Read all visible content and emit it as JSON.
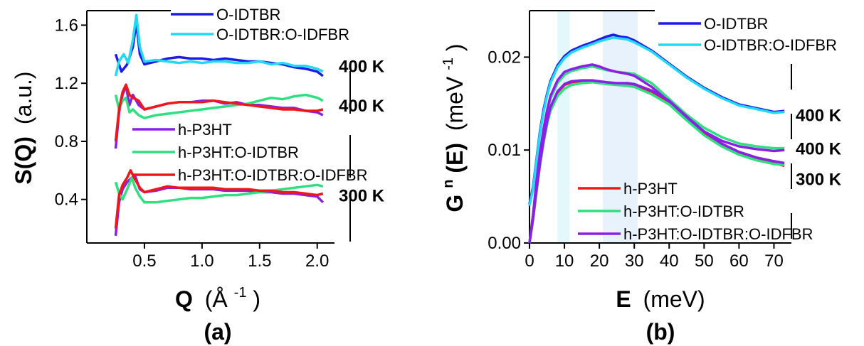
{
  "chart_data": [
    {
      "type": "line",
      "panel_label": "(a)",
      "xlabel": {
        "main": "Q",
        "unit_open": "(Å",
        "unit_sup": "-1",
        "unit_close": ")"
      },
      "ylabel": {
        "main": "S(Q)",
        "unit": "(a.u.)"
      },
      "xlim": [
        0,
        2.15
      ],
      "ylim": [
        0.1,
        1.7
      ],
      "xticks": [
        0.5,
        1.0,
        1.5,
        2.0
      ],
      "xtick_labels": [
        "0.5",
        "1.0",
        "1.5",
        "2.0"
      ],
      "yticks": [
        0.4,
        0.8,
        1.2,
        1.6
      ],
      "ytick_labels": [
        "0.4",
        "0.8",
        "1.2",
        "1.6"
      ],
      "temperature_labels": [
        {
          "text": "400 K",
          "y": 1.32
        },
        {
          "text": "400 K",
          "y": 1.05
        },
        {
          "text": "300 K",
          "y": 0.43
        }
      ],
      "legend_groups": [
        {
          "placement": "top",
          "entries": [
            0,
            1
          ]
        },
        {
          "placement": "middle-left",
          "entries": [
            2,
            3,
            4
          ]
        }
      ],
      "series": [
        {
          "name": "O-IDTBR",
          "color": "#1c1ce6",
          "x": [
            0.25,
            0.3,
            0.35,
            0.4,
            0.43,
            0.46,
            0.5,
            0.6,
            0.7,
            0.8,
            0.9,
            1.0,
            1.1,
            1.2,
            1.3,
            1.4,
            1.5,
            1.6,
            1.7,
            1.8,
            1.9,
            2.0,
            2.05
          ],
          "y": [
            1.4,
            1.28,
            1.33,
            1.45,
            1.62,
            1.4,
            1.33,
            1.35,
            1.37,
            1.38,
            1.37,
            1.37,
            1.36,
            1.37,
            1.36,
            1.35,
            1.35,
            1.34,
            1.33,
            1.31,
            1.3,
            1.28,
            1.25
          ]
        },
        {
          "name": "O-IDTBR:O-IDFBR",
          "color": "#22d9f5",
          "x": [
            0.25,
            0.28,
            0.32,
            0.36,
            0.4,
            0.43,
            0.46,
            0.5,
            0.6,
            0.7,
            0.8,
            0.9,
            1.0,
            1.1,
            1.2,
            1.3,
            1.4,
            1.5,
            1.6,
            1.7,
            1.8,
            1.9,
            2.0,
            2.05
          ],
          "y": [
            1.25,
            1.35,
            1.4,
            1.34,
            1.5,
            1.67,
            1.45,
            1.35,
            1.36,
            1.35,
            1.34,
            1.35,
            1.34,
            1.35,
            1.35,
            1.34,
            1.34,
            1.35,
            1.33,
            1.34,
            1.32,
            1.32,
            1.3,
            1.28
          ]
        },
        {
          "name": "h-P3HT",
          "color": "#8b1fe8",
          "x": [
            0.25,
            0.28,
            0.31,
            0.34,
            0.37,
            0.4,
            0.45,
            0.5,
            0.6,
            0.7,
            0.8,
            0.9,
            1.0,
            1.1,
            1.2,
            1.3,
            1.4,
            1.5,
            1.6,
            1.7,
            1.8,
            1.9,
            2.0,
            2.05
          ],
          "y": [
            0.75,
            1.0,
            1.12,
            1.18,
            1.05,
            1.12,
            1.05,
            1.02,
            1.04,
            1.06,
            1.07,
            1.07,
            1.08,
            1.08,
            1.06,
            1.07,
            1.05,
            1.05,
            1.04,
            1.03,
            1.03,
            1.01,
            1.0,
            0.98
          ]
        },
        {
          "name": "h-P3HT:O-IDTBR",
          "color": "#2ee07f",
          "x": [
            0.25,
            0.28,
            0.31,
            0.34,
            0.37,
            0.4,
            0.45,
            0.5,
            0.6,
            0.7,
            0.8,
            0.9,
            1.0,
            1.1,
            1.2,
            1.3,
            1.4,
            1.5,
            1.6,
            1.7,
            1.8,
            1.9,
            2.0,
            2.05
          ],
          "y": [
            1.12,
            1.02,
            1.08,
            1.1,
            1.0,
            1.02,
            0.98,
            0.96,
            0.98,
            0.99,
            1.0,
            1.01,
            1.02,
            1.03,
            1.04,
            1.05,
            1.06,
            1.08,
            1.1,
            1.09,
            1.11,
            1.12,
            1.1,
            1.08
          ]
        },
        {
          "name": "h-P3HT:O-IDTBR:O-IDFBR",
          "color": "#f01717",
          "x": [
            0.25,
            0.28,
            0.31,
            0.34,
            0.37,
            0.4,
            0.45,
            0.5,
            0.6,
            0.7,
            0.8,
            0.9,
            1.0,
            1.1,
            1.2,
            1.3,
            1.4,
            1.5,
            1.6,
            1.7,
            1.8,
            1.9,
            2.0,
            2.05
          ],
          "y": [
            0.8,
            1.02,
            1.14,
            1.19,
            1.12,
            1.1,
            1.08,
            1.02,
            1.04,
            1.06,
            1.07,
            1.07,
            1.07,
            1.08,
            1.07,
            1.06,
            1.05,
            1.04,
            1.03,
            1.02,
            1.02,
            1.01,
            1.01,
            1.02
          ]
        },
        {
          "name": "",
          "color": "#8b1fe8",
          "x": [
            0.25,
            0.28,
            0.31,
            0.35,
            0.39,
            0.42,
            0.46,
            0.5,
            0.6,
            0.7,
            0.8,
            0.9,
            1.0,
            1.1,
            1.2,
            1.3,
            1.4,
            1.5,
            1.6,
            1.7,
            1.8,
            1.9,
            2.0,
            2.05
          ],
          "y": [
            0.15,
            0.38,
            0.47,
            0.52,
            0.55,
            0.56,
            0.47,
            0.45,
            0.46,
            0.48,
            0.48,
            0.47,
            0.47,
            0.47,
            0.46,
            0.46,
            0.46,
            0.45,
            0.45,
            0.44,
            0.44,
            0.43,
            0.42,
            0.38
          ]
        },
        {
          "name": "",
          "color": "#2ee07f",
          "x": [
            0.25,
            0.28,
            0.31,
            0.35,
            0.39,
            0.42,
            0.46,
            0.5,
            0.6,
            0.7,
            0.8,
            0.9,
            1.0,
            1.1,
            1.2,
            1.3,
            1.4,
            1.5,
            1.6,
            1.7,
            1.8,
            1.9,
            2.0,
            2.05
          ],
          "y": [
            0.52,
            0.44,
            0.4,
            0.47,
            0.55,
            0.48,
            0.42,
            0.38,
            0.38,
            0.39,
            0.4,
            0.41,
            0.41,
            0.42,
            0.43,
            0.43,
            0.44,
            0.45,
            0.46,
            0.47,
            0.48,
            0.49,
            0.5,
            0.49
          ]
        },
        {
          "name": "",
          "color": "#f01717",
          "x": [
            0.25,
            0.28,
            0.31,
            0.35,
            0.38,
            0.41,
            0.46,
            0.5,
            0.6,
            0.7,
            0.8,
            0.9,
            1.0,
            1.1,
            1.2,
            1.3,
            1.4,
            1.5,
            1.6,
            1.7,
            1.8,
            1.9,
            2.0,
            2.05
          ],
          "y": [
            0.2,
            0.43,
            0.5,
            0.55,
            0.6,
            0.55,
            0.48,
            0.45,
            0.47,
            0.49,
            0.48,
            0.48,
            0.48,
            0.48,
            0.47,
            0.47,
            0.47,
            0.46,
            0.46,
            0.45,
            0.45,
            0.44,
            0.43,
            0.44
          ]
        }
      ]
    },
    {
      "type": "line",
      "panel_label": "(b)",
      "xlabel": {
        "main": "E",
        "unit": "(meV)"
      },
      "ylabel": {
        "main": "G",
        "main_sup": "n",
        "main_rest": "(E)",
        "unit_open": "(meV",
        "unit_sup": "-1",
        "unit_close": ")"
      },
      "xlim": [
        0,
        75
      ],
      "ylim": [
        0,
        0.025
      ],
      "xticks": [
        0,
        10,
        20,
        30,
        40,
        50,
        60,
        70
      ],
      "xtick_labels": [
        "0",
        "10",
        "20",
        "30",
        "40",
        "50",
        "60",
        "70"
      ],
      "yticks": [
        0.0,
        0.01,
        0.02
      ],
      "ytick_labels": [
        "0.00",
        "0.01",
        "0.02"
      ],
      "shaded_bands": [
        {
          "x": [
            8,
            11.5
          ],
          "color": "#e3f8fb"
        },
        {
          "x": [
            21,
            31
          ],
          "color": "#e8f2fc"
        }
      ],
      "temperature_labels": [
        {
          "text": "400 K",
          "y": 0.0138
        },
        {
          "text": "400 K",
          "y": 0.0102
        },
        {
          "text": "300 K",
          "y": 0.0069
        }
      ],
      "legend_groups": [
        {
          "placement": "top-right",
          "entries": [
            0,
            1
          ]
        },
        {
          "placement": "bottom-right",
          "entries": [
            2,
            3,
            4
          ]
        }
      ],
      "series": [
        {
          "name": "O-IDTBR",
          "color": "#1c1ce6",
          "x": [
            0,
            1,
            2,
            3,
            4,
            5,
            6,
            8,
            10,
            12,
            15,
            18,
            20,
            22,
            24,
            26,
            28,
            30,
            35,
            40,
            45,
            50,
            55,
            60,
            65,
            70,
            73
          ],
          "y": [
            0.0042,
            0.006,
            0.009,
            0.012,
            0.0143,
            0.016,
            0.0174,
            0.0191,
            0.0201,
            0.0207,
            0.0212,
            0.0216,
            0.0219,
            0.0222,
            0.0224,
            0.0222,
            0.0221,
            0.0218,
            0.0207,
            0.0193,
            0.0179,
            0.0167,
            0.0157,
            0.0149,
            0.0145,
            0.0141,
            0.0142
          ]
        },
        {
          "name": "O-IDTBR:O-IDFBR",
          "color": "#22d9f5",
          "x": [
            0,
            1,
            2,
            3,
            4,
            5,
            6,
            8,
            10,
            12,
            15,
            18,
            20,
            22,
            24,
            26,
            28,
            30,
            35,
            40,
            45,
            50,
            55,
            60,
            65,
            70,
            73
          ],
          "y": [
            0.004,
            0.0058,
            0.0088,
            0.0118,
            0.014,
            0.0158,
            0.0172,
            0.0189,
            0.0199,
            0.0205,
            0.021,
            0.0214,
            0.0217,
            0.0219,
            0.0221,
            0.022,
            0.0219,
            0.0216,
            0.0206,
            0.0192,
            0.0178,
            0.0166,
            0.0156,
            0.0148,
            0.0144,
            0.014,
            0.0141
          ]
        },
        {
          "name": "h-P3HT",
          "color": "#f01717",
          "x": [
            0,
            1,
            2,
            3,
            4,
            5,
            6,
            8,
            10,
            12,
            15,
            18,
            20,
            22,
            25,
            28,
            30,
            35,
            40,
            45,
            50,
            55,
            60,
            65,
            70,
            73
          ],
          "y": [
            0.0,
            0.0025,
            0.0055,
            0.0085,
            0.011,
            0.013,
            0.0145,
            0.0162,
            0.017,
            0.0173,
            0.0174,
            0.0174,
            0.0173,
            0.0172,
            0.0171,
            0.0171,
            0.017,
            0.0163,
            0.0152,
            0.0135,
            0.0118,
            0.0105,
            0.0096,
            0.009,
            0.0086,
            0.0083
          ]
        },
        {
          "name": "h-P3HT:O-IDTBR",
          "color": "#2ee07f",
          "x": [
            0,
            1,
            2,
            3,
            4,
            5,
            6,
            8,
            10,
            12,
            15,
            18,
            20,
            22,
            25,
            28,
            30,
            35,
            40,
            45,
            50,
            55,
            60,
            65,
            70,
            73
          ],
          "y": [
            0.0,
            0.003,
            0.0065,
            0.0095,
            0.012,
            0.014,
            0.0155,
            0.0172,
            0.0181,
            0.0185,
            0.0188,
            0.019,
            0.0188,
            0.0186,
            0.0184,
            0.0183,
            0.0182,
            0.0172,
            0.0155,
            0.0138,
            0.0124,
            0.0114,
            0.0107,
            0.0104,
            0.0102,
            0.0102
          ]
        },
        {
          "name": "h-P3HT:O-IDTBR:O-IDFBR",
          "color": "#8b1fe8",
          "x": [
            0,
            1,
            2,
            3,
            4,
            5,
            6,
            8,
            10,
            12,
            15,
            18,
            20,
            22,
            25,
            28,
            30,
            35,
            40,
            45,
            50,
            55,
            60,
            65,
            70,
            73
          ],
          "y": [
            0.0,
            0.003,
            0.0066,
            0.0097,
            0.0122,
            0.0142,
            0.0158,
            0.0175,
            0.0184,
            0.0187,
            0.019,
            0.0192,
            0.019,
            0.0187,
            0.0184,
            0.0182,
            0.018,
            0.0168,
            0.0152,
            0.0134,
            0.012,
            0.011,
            0.0104,
            0.0101,
            0.0099,
            0.01
          ]
        },
        {
          "name": "",
          "color": "#2ee07f",
          "x": [
            0,
            1,
            2,
            3,
            4,
            5,
            6,
            8,
            10,
            12,
            15,
            18,
            20,
            22,
            25,
            28,
            30,
            35,
            40,
            45,
            50,
            55,
            60,
            65,
            70,
            73
          ],
          "y": [
            0.0,
            0.0025,
            0.0055,
            0.0083,
            0.0107,
            0.0127,
            0.0142,
            0.0158,
            0.0166,
            0.017,
            0.0172,
            0.0173,
            0.0172,
            0.0171,
            0.017,
            0.0169,
            0.0168,
            0.016,
            0.0149,
            0.0132,
            0.0116,
            0.0104,
            0.0095,
            0.0089,
            0.0085,
            0.0084
          ]
        },
        {
          "name": "",
          "color": "#8b1fe8",
          "x": [
            0,
            1,
            2,
            3,
            4,
            5,
            6,
            8,
            10,
            12,
            15,
            18,
            20,
            22,
            25,
            28,
            30,
            35,
            40,
            45,
            50,
            55,
            60,
            65,
            70,
            73
          ],
          "y": [
            0.0,
            0.0026,
            0.0057,
            0.0086,
            0.011,
            0.013,
            0.0146,
            0.0163,
            0.0171,
            0.0174,
            0.0175,
            0.0175,
            0.0174,
            0.0173,
            0.0172,
            0.0172,
            0.0171,
            0.0164,
            0.0153,
            0.0136,
            0.012,
            0.0107,
            0.0098,
            0.0092,
            0.0088,
            0.0086
          ]
        }
      ]
    }
  ]
}
